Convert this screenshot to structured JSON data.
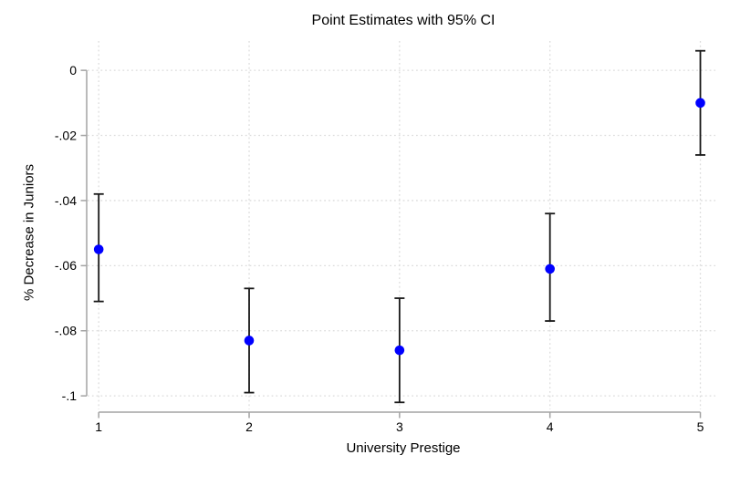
{
  "chart_data": {
    "type": "scatter",
    "title": "Point Estimates with 95% CI",
    "xlabel": "University Prestige",
    "ylabel": "% Decrease in Juniors",
    "x": [
      1,
      2,
      3,
      4,
      5
    ],
    "xtick_labels": [
      "1",
      "2",
      "3",
      "4",
      "5"
    ],
    "yticks": [
      0,
      -0.02,
      -0.04,
      -0.06,
      -0.08,
      -0.1
    ],
    "ytick_labels": [
      "0",
      "-.02",
      "-.04",
      "-.06",
      "-.08",
      "-.1"
    ],
    "xlim": [
      0.92,
      5.1
    ],
    "ylim": [
      -0.105,
      0.009
    ],
    "grid": true,
    "legend": false,
    "series": [
      {
        "name": "point-estimate-95ci",
        "estimates": [
          -0.055,
          -0.083,
          -0.086,
          -0.061,
          -0.01
        ],
        "ci_lower": [
          -0.071,
          -0.099,
          -0.102,
          -0.077,
          -0.026
        ],
        "ci_upper": [
          -0.038,
          -0.067,
          -0.07,
          -0.044,
          0.006
        ]
      }
    ],
    "colors": {
      "marker": "#0000ff",
      "error_bar": "#181818",
      "axis": "#a3a3a3",
      "gridline": "#dcdcdc",
      "text": "#000000",
      "background": "#ffffff"
    }
  }
}
